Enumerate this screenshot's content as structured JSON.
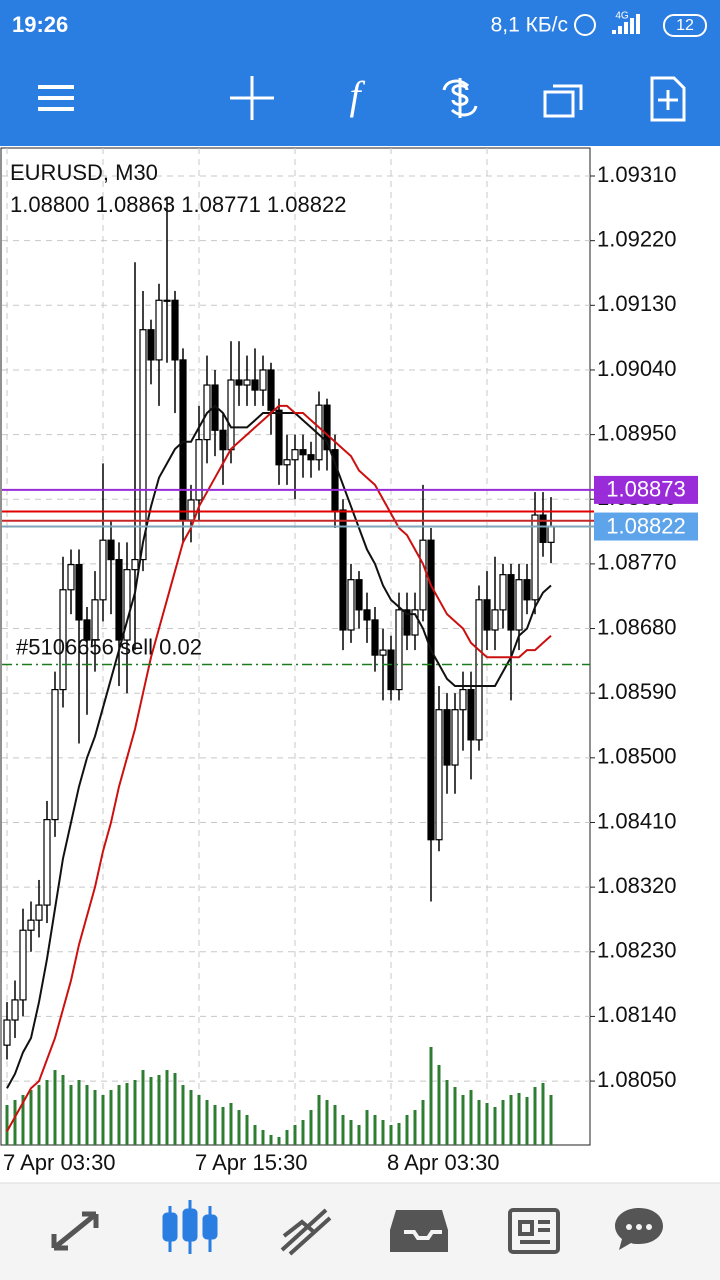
{
  "status_bar": {
    "time": "19:26",
    "speed": "8,1 КБ/с",
    "network": "4G",
    "battery": "12"
  },
  "chart": {
    "type": "candlestick",
    "symbol": "EURUSD, M30",
    "ohlc": "1.08800 1.08863 1.08771 1.08822",
    "ylim": [
      1.07961,
      1.09349
    ],
    "yticks": [
      {
        "value": 1.0931,
        "label": "1.09310"
      },
      {
        "value": 1.0922,
        "label": "1.09220"
      },
      {
        "value": 1.0913,
        "label": "1.09130"
      },
      {
        "value": 1.0904,
        "label": "1.09040"
      },
      {
        "value": 1.0895,
        "label": "1.08950"
      },
      {
        "value": 1.0886,
        "label": "1.08860"
      },
      {
        "value": 1.0877,
        "label": "1.08770"
      },
      {
        "value": 1.0868,
        "label": "1.08680"
      },
      {
        "value": 1.0859,
        "label": "1.08590"
      },
      {
        "value": 1.085,
        "label": "1.08500"
      },
      {
        "value": 1.0841,
        "label": "1.08410"
      },
      {
        "value": 1.0832,
        "label": "1.08320"
      },
      {
        "value": 1.0823,
        "label": "1.08230"
      },
      {
        "value": 1.0814,
        "label": "1.08140"
      },
      {
        "value": 1.0805,
        "label": "1.08050"
      }
    ],
    "xticks": [
      {
        "value": 0,
        "label": "7 Apr 03:30"
      },
      {
        "value": 24,
        "label": "7 Apr 15:30"
      },
      {
        "value": 48,
        "label": "8 Apr 03:30"
      }
    ],
    "grid": true,
    "candles": [
      [
        1.081,
        1.0816,
        1.0808,
        1.08135
      ],
      [
        1.08135,
        1.0819,
        1.0811,
        1.08163
      ],
      [
        1.08163,
        1.0829,
        1.0814,
        1.0826
      ],
      [
        1.0826,
        1.083,
        1.0823,
        1.08274
      ],
      [
        1.08274,
        1.0833,
        1.0825,
        1.08295
      ],
      [
        1.08295,
        1.0844,
        1.0827,
        1.08414
      ],
      [
        1.08414,
        1.0862,
        1.0839,
        1.08595
      ],
      [
        1.08595,
        1.0878,
        1.0857,
        1.08734
      ],
      [
        1.08734,
        1.0879,
        1.087,
        1.08769
      ],
      [
        1.08769,
        1.0879,
        1.0852,
        1.08692
      ],
      [
        1.08692,
        1.0871,
        1.0856,
        1.08664
      ],
      [
        1.08664,
        1.0876,
        1.0862,
        1.0872
      ],
      [
        1.0872,
        1.0891,
        1.0869,
        1.08803
      ],
      [
        1.08803,
        1.0883,
        1.087,
        1.08776
      ],
      [
        1.08776,
        1.088,
        1.086,
        1.08664
      ],
      [
        1.08664,
        1.088,
        1.0859,
        1.08762
      ],
      [
        1.08762,
        1.0919,
        1.0865,
        1.08776
      ],
      [
        1.08776,
        1.0915,
        1.0876,
        1.09096
      ],
      [
        1.09096,
        1.0911,
        1.0902,
        1.09054
      ],
      [
        1.09054,
        1.0916,
        1.0899,
        1.09137
      ],
      [
        1.09137,
        1.0928,
        1.0905,
        1.09137
      ],
      [
        1.09137,
        1.0915,
        1.0898,
        1.09054
      ],
      [
        1.09054,
        1.0907,
        1.088,
        1.08831
      ],
      [
        1.08831,
        1.0888,
        1.088,
        1.08859
      ],
      [
        1.08859,
        1.0899,
        1.0883,
        1.08943
      ],
      [
        1.08943,
        1.0906,
        1.0891,
        1.09019
      ],
      [
        1.09019,
        1.0904,
        1.0892,
        1.08956
      ],
      [
        1.08956,
        1.0898,
        1.0888,
        1.08929
      ],
      [
        1.08929,
        1.0908,
        1.0891,
        1.09026
      ],
      [
        1.09026,
        1.0908,
        1.0899,
        1.09019
      ],
      [
        1.09019,
        1.0906,
        1.0899,
        1.09026
      ],
      [
        1.09026,
        1.0907,
        1.0899,
        1.09012
      ],
      [
        1.09012,
        1.0906,
        1.0899,
        1.0904
      ],
      [
        1.0904,
        1.0905,
        1.0895,
        1.08984
      ],
      [
        1.08984,
        1.09,
        1.0888,
        1.08908
      ],
      [
        1.08908,
        1.0895,
        1.0888,
        1.08915
      ],
      [
        1.08915,
        1.0895,
        1.0886,
        1.08929
      ],
      [
        1.08929,
        1.0895,
        1.0889,
        1.08922
      ],
      [
        1.08922,
        1.0894,
        1.0889,
        1.08915
      ],
      [
        1.08915,
        1.0901,
        1.089,
        1.08991
      ],
      [
        1.08991,
        1.09,
        1.089,
        1.08929
      ],
      [
        1.08929,
        1.0895,
        1.0882,
        1.08845
      ],
      [
        1.08845,
        1.0886,
        1.0865,
        1.08678
      ],
      [
        1.08678,
        1.0877,
        1.0866,
        1.08748
      ],
      [
        1.08748,
        1.0876,
        1.0868,
        1.08706
      ],
      [
        1.08706,
        1.0873,
        1.0866,
        1.08692
      ],
      [
        1.08692,
        1.0871,
        1.0862,
        1.08643
      ],
      [
        1.08643,
        1.0868,
        1.0858,
        1.0865
      ],
      [
        1.0865,
        1.0867,
        1.0858,
        1.08595
      ],
      [
        1.08595,
        1.0873,
        1.0858,
        1.08706
      ],
      [
        1.08706,
        1.0873,
        1.0865,
        1.08671
      ],
      [
        1.08671,
        1.0873,
        1.0865,
        1.08706
      ],
      [
        1.08706,
        1.0888,
        1.0869,
        1.08803
      ],
      [
        1.08803,
        1.0882,
        1.083,
        1.08386
      ],
      [
        1.08386,
        1.086,
        1.0837,
        1.08567
      ],
      [
        1.08567,
        1.0859,
        1.0845,
        1.0849
      ],
      [
        1.0849,
        1.0859,
        1.0845,
        1.08567
      ],
      [
        1.08567,
        1.0862,
        1.0851,
        1.08595
      ],
      [
        1.08595,
        1.0862,
        1.0847,
        1.08525
      ],
      [
        1.08525,
        1.0874,
        1.0851,
        1.0872
      ],
      [
        1.0872,
        1.0876,
        1.0865,
        1.08678
      ],
      [
        1.08678,
        1.0878,
        1.0865,
        1.08706
      ],
      [
        1.08706,
        1.0877,
        1.0868,
        1.08755
      ],
      [
        1.08755,
        1.0877,
        1.0858,
        1.08678
      ],
      [
        1.08678,
        1.0877,
        1.0865,
        1.08748
      ],
      [
        1.08748,
        1.0877,
        1.087,
        1.0872
      ],
      [
        1.0872,
        1.0887,
        1.087,
        1.08838
      ],
      [
        1.08838,
        1.0887,
        1.0878,
        1.088
      ],
      [
        1.088,
        1.08863,
        1.08771,
        1.08822
      ]
    ],
    "moving_averages": [
      {
        "color": "#111111",
        "values": [
          1.0804,
          1.0806,
          1.0809,
          1.0811,
          1.0816,
          1.0822,
          1.0829,
          1.0836,
          1.0841,
          1.0846,
          1.085,
          1.0853,
          1.0857,
          1.0861,
          1.0865,
          1.0869,
          1.0873,
          1.088,
          1.0885,
          1.0889,
          1.0891,
          1.0893,
          1.0894,
          1.0894,
          1.0896,
          1.0898,
          1.0899,
          1.0898,
          1.0896,
          1.0896,
          1.0896,
          1.0897,
          1.0898,
          1.0898,
          1.0898,
          1.0898,
          1.0898,
          1.0897,
          1.0896,
          1.0895,
          1.0894,
          1.0891,
          1.0888,
          1.0885,
          1.0882,
          1.0879,
          1.0877,
          1.0874,
          1.0872,
          1.0871,
          1.087,
          1.087,
          1.0868,
          1.0865,
          1.0863,
          1.0861,
          1.086,
          1.086,
          1.086,
          1.086,
          1.086,
          1.086,
          1.0862,
          1.0864,
          1.0867,
          1.0868,
          1.0871,
          1.0873,
          1.0874
        ]
      },
      {
        "color": "#cc1010",
        "values": [
          1.0798,
          1.08,
          1.0802,
          1.0804,
          1.0805,
          1.0808,
          1.0811,
          1.0815,
          1.0819,
          1.0824,
          1.0828,
          1.0832,
          1.0837,
          1.0841,
          1.0846,
          1.085,
          1.0854,
          1.0859,
          1.0864,
          1.0868,
          1.0872,
          1.0876,
          1.088,
          1.0882,
          1.0885,
          1.0887,
          1.0889,
          1.0891,
          1.0893,
          1.0894,
          1.0895,
          1.0896,
          1.0897,
          1.0898,
          1.0899,
          1.0899,
          1.0898,
          1.0898,
          1.0897,
          1.0896,
          1.0895,
          1.0894,
          1.0893,
          1.0892,
          1.089,
          1.0889,
          1.0888,
          1.0886,
          1.0884,
          1.0882,
          1.0881,
          1.0879,
          1.0877,
          1.0874,
          1.0872,
          1.087,
          1.0869,
          1.0868,
          1.0866,
          1.0865,
          1.0864,
          1.0864,
          1.0864,
          1.0864,
          1.0864,
          1.0865,
          1.0865,
          1.0866,
          1.0867
        ]
      }
    ],
    "volume": {
      "color": "#2e7d32",
      "values": [
        40,
        45,
        50,
        55,
        60,
        65,
        75,
        70,
        60,
        65,
        60,
        55,
        50,
        55,
        60,
        62,
        65,
        75,
        68,
        70,
        75,
        72,
        60,
        55,
        50,
        45,
        40,
        38,
        42,
        35,
        30,
        20,
        15,
        10,
        8,
        15,
        20,
        25,
        35,
        50,
        45,
        40,
        30,
        25,
        20,
        35,
        30,
        25,
        20,
        22,
        30,
        35,
        45,
        98,
        80,
        65,
        58,
        50,
        55,
        45,
        42,
        38,
        45,
        50,
        52,
        48,
        58,
        62,
        50
      ]
    },
    "price_lines": [
      {
        "price": 1.08873,
        "color": "#9a2bd8",
        "labeled": true
      },
      {
        "price": 1.08843,
        "color": "#e00000",
        "labeled": false
      },
      {
        "price": 1.0883,
        "color": "#c62828",
        "labeled": false
      },
      {
        "price": 1.08822,
        "color": "#7fa7b8",
        "labeled": true,
        "label_color": "#5ea4ea"
      }
    ],
    "order": {
      "price": 1.0863,
      "label": "#5106656 sell 0.02",
      "color": "#1b7a1b"
    }
  }
}
